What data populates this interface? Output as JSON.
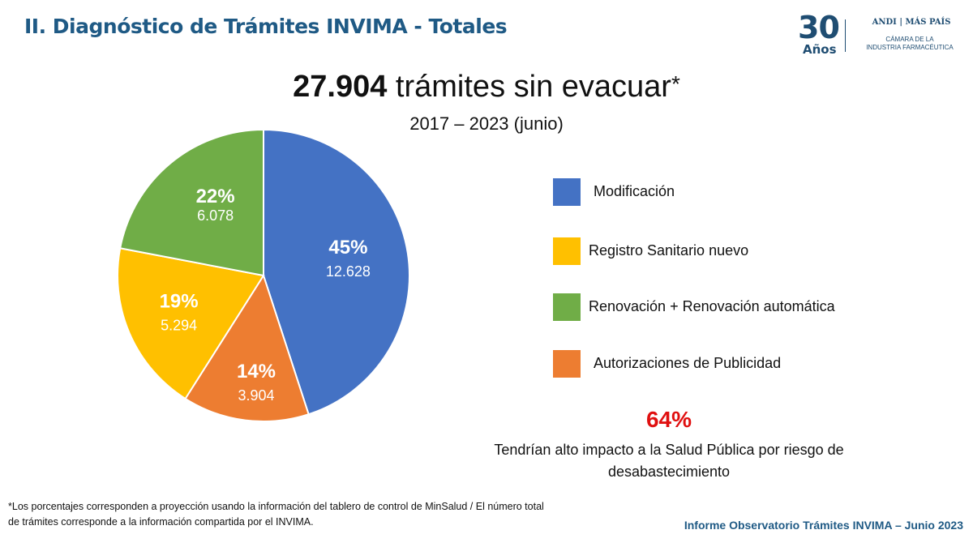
{
  "slide": {
    "title": "II. Diagnóstico de Trámites INVIMA - Totales",
    "logo": {
      "anniversary_number": "30",
      "anniversary_word": "Años",
      "brand_left": "ANDI",
      "brand_right": "MÁS PAÍS",
      "subtitle_line1": "CÁMARA DE LA",
      "subtitle_line2": "INDUSTRIA FARMACÉUTICA"
    },
    "headline": {
      "number": "27.904",
      "text": " trámites sin evacuar",
      "mark": "*"
    },
    "period": "2017 – 2023 (junio)",
    "highlight": {
      "percent": "64%",
      "text": "Tendrían alto impacto a la Salud Pública por riesgo de desabastecimiento"
    },
    "footnote_line1": "*Los porcentajes corresponden a proyección usando la información del tablero de control de MinSalud  / El número total",
    "footnote_line2": "de trámites corresponde a la información compartida por el INVIMA.",
    "source": "Informe Observatorio Trámites INVIMA – Junio 2023"
  },
  "chart_data": {
    "type": "pie",
    "title": "27.904 trámites sin evacuar*",
    "subtitle": "2017 – 2023 (junio)",
    "total": 27904,
    "legend_position": "right",
    "slices": [
      {
        "name": "Modificación",
        "percent": 45,
        "value": 12628,
        "percent_label": "45%",
        "value_label": "12.628",
        "color": "#4472c4"
      },
      {
        "name": "Autorizaciones de Publicidad",
        "percent": 14,
        "value": 3904,
        "percent_label": "14%",
        "value_label": "3.904",
        "color": "#ed7d31"
      },
      {
        "name": "Registro Sanitario nuevo",
        "percent": 19,
        "value": 5294,
        "percent_label": "19%",
        "value_label": "5.294",
        "color": "#ffc000"
      },
      {
        "name": "Renovación + Renovación automática",
        "percent": 22,
        "value": 6078,
        "percent_label": "22%",
        "value_label": "6.078",
        "color": "#70ad47"
      }
    ],
    "legend": [
      {
        "label": "Modificación",
        "color": "#4472c4"
      },
      {
        "label": "Registro Sanitario nuevo",
        "color": "#ffc000"
      },
      {
        "label": "Renovación + Renovación automática",
        "color": "#70ad47"
      },
      {
        "label": "Autorizaciones de Publicidad",
        "color": "#ed7d31"
      }
    ]
  }
}
